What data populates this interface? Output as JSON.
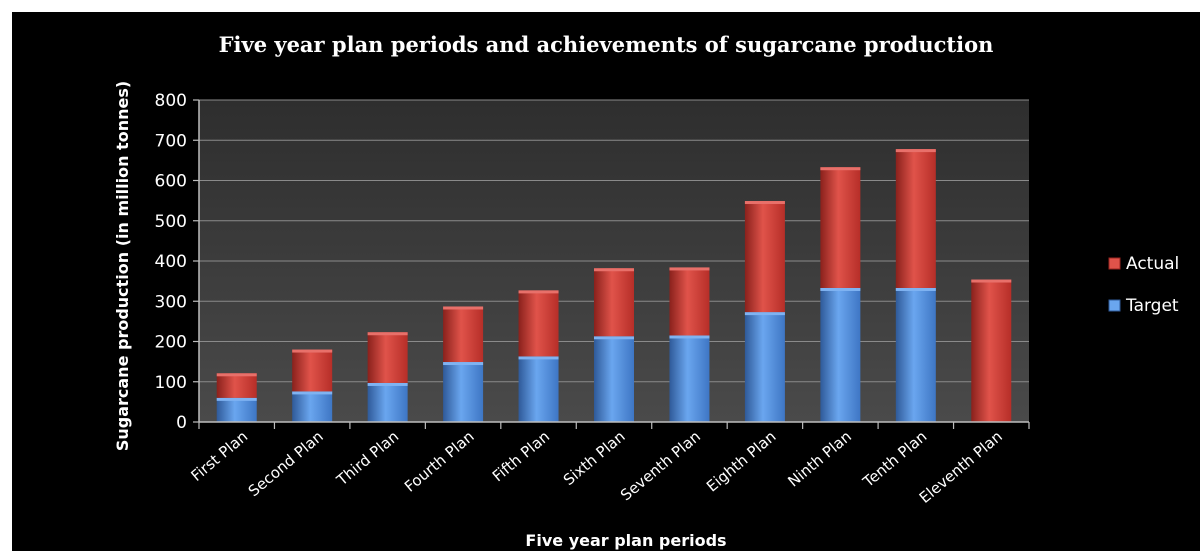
{
  "chart_data": {
    "type": "bar",
    "stacked": true,
    "title": "Five year plan periods and achievements of sugarcane production",
    "xlabel": "Five year plan periods",
    "ylabel": "Sugarcane production (in million tonnes)",
    "ylim": [
      0,
      800
    ],
    "yticks": [
      0,
      100,
      200,
      300,
      400,
      500,
      600,
      700,
      800
    ],
    "grid": true,
    "legend_position": "right",
    "categories": [
      "First Plan",
      "Second Plan",
      "Third Plan",
      "Fourth Plan",
      "Fifth Plan",
      "Sixth Plan",
      "Seventh Plan",
      "Eighth Plan",
      "Ninth Plan",
      "Tenth Plan",
      "Eleventh Plan"
    ],
    "series": [
      {
        "name": "Target",
        "color": "#4a86d4",
        "values": [
          60,
          76,
          97,
          149,
          163,
          213,
          215,
          273,
          333,
          333,
          0
        ]
      },
      {
        "name": "Actual",
        "color": "#c83a32",
        "values": [
          61,
          104,
          126,
          138,
          164,
          169,
          169,
          276,
          300,
          345,
          354
        ]
      }
    ],
    "legend": [
      "Actual",
      "Target"
    ],
    "plot_background": "#3c3c3c"
  }
}
